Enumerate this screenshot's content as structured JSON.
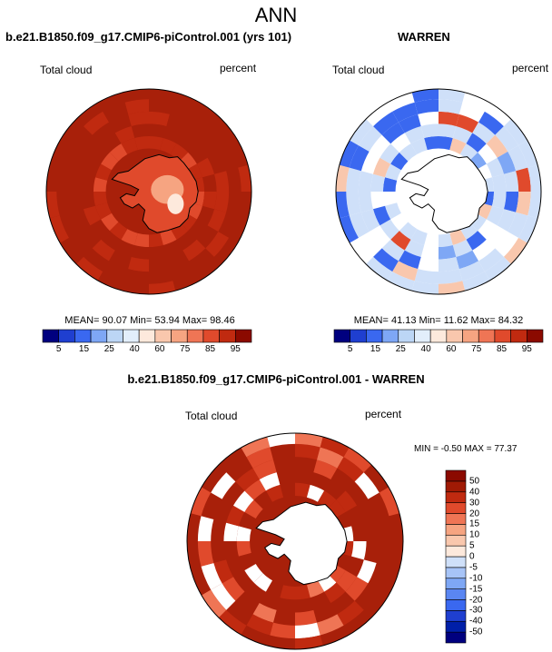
{
  "figure": {
    "title": "ANN",
    "bottom_title": "b.e21.B1850.f09_g17.CMIP6-piControl.001 - WARREN"
  },
  "panels": [
    {
      "title": "b.e21.B1850.f09_g17.CMIP6-piControl.001 (yrs 101)",
      "left_label": "Total cloud",
      "right_label": "percent",
      "stats": "MEAN=  90.07  Min=  53.94  Max=  98.46"
    },
    {
      "title": "WARREN",
      "left_label": "Total cloud",
      "right_label": "percent",
      "stats": "MEAN=  41.13  Min=  11.62  Max=  84.32"
    },
    {
      "title": "",
      "left_label": "Total cloud",
      "right_label": "percent",
      "stats": "MIN =  -0.50 MAX =  77.37"
    }
  ],
  "chart_data": [
    {
      "type": "heatmap",
      "projection": "south-polar-stereographic",
      "title": "b.e21.B1850.f09_g17.CMIP6-piControl.001 (yrs 101)",
      "variable": "Total cloud",
      "units": "percent",
      "mean": 90.07,
      "min": 53.94,
      "max": 98.46,
      "colorbar": {
        "levels": [
          5,
          15,
          25,
          40,
          60,
          75,
          85,
          95
        ],
        "colors": [
          "#00007f",
          "#1f3fd0",
          "#3a68f0",
          "#7ea7f5",
          "#bcd6f5",
          "#e2eefb",
          "#fde9dc",
          "#f9c7ad",
          "#f6a481",
          "#ef7555",
          "#e04a2c",
          "#c02a10",
          "#8b0a00"
        ]
      }
    },
    {
      "type": "heatmap",
      "projection": "south-polar-stereographic",
      "title": "WARREN",
      "variable": "Total cloud",
      "units": "percent",
      "mean": 41.13,
      "min": 11.62,
      "max": 84.32,
      "colorbar": {
        "levels": [
          5,
          15,
          25,
          40,
          60,
          75,
          85,
          95
        ],
        "colors": [
          "#00007f",
          "#1f3fd0",
          "#3a68f0",
          "#7ea7f5",
          "#bcd6f5",
          "#e2eefb",
          "#fde9dc",
          "#f9c7ad",
          "#f6a481",
          "#ef7555",
          "#e04a2c",
          "#c02a10",
          "#8b0a00"
        ]
      }
    },
    {
      "type": "heatmap",
      "projection": "south-polar-stereographic",
      "title": "b.e21.B1850.f09_g17.CMIP6-piControl.001 - WARREN",
      "variable": "Total cloud",
      "units": "percent",
      "min": -0.5,
      "max": 77.37,
      "colorbar": {
        "orientation": "vertical",
        "levels": [
          -50,
          -40,
          -30,
          -20,
          -15,
          -10,
          -5,
          0,
          5,
          10,
          15,
          20,
          30,
          40,
          50
        ],
        "colors": [
          "#00007f",
          "#001fa8",
          "#1f3fd0",
          "#3a68f0",
          "#5a86f2",
          "#7ea7f5",
          "#a7c4f7",
          "#cfe0f9",
          "#fde9dc",
          "#f9c7ad",
          "#f6a481",
          "#ef7555",
          "#e04a2c",
          "#c02a10",
          "#a01a05",
          "#8b0a00"
        ]
      }
    }
  ]
}
